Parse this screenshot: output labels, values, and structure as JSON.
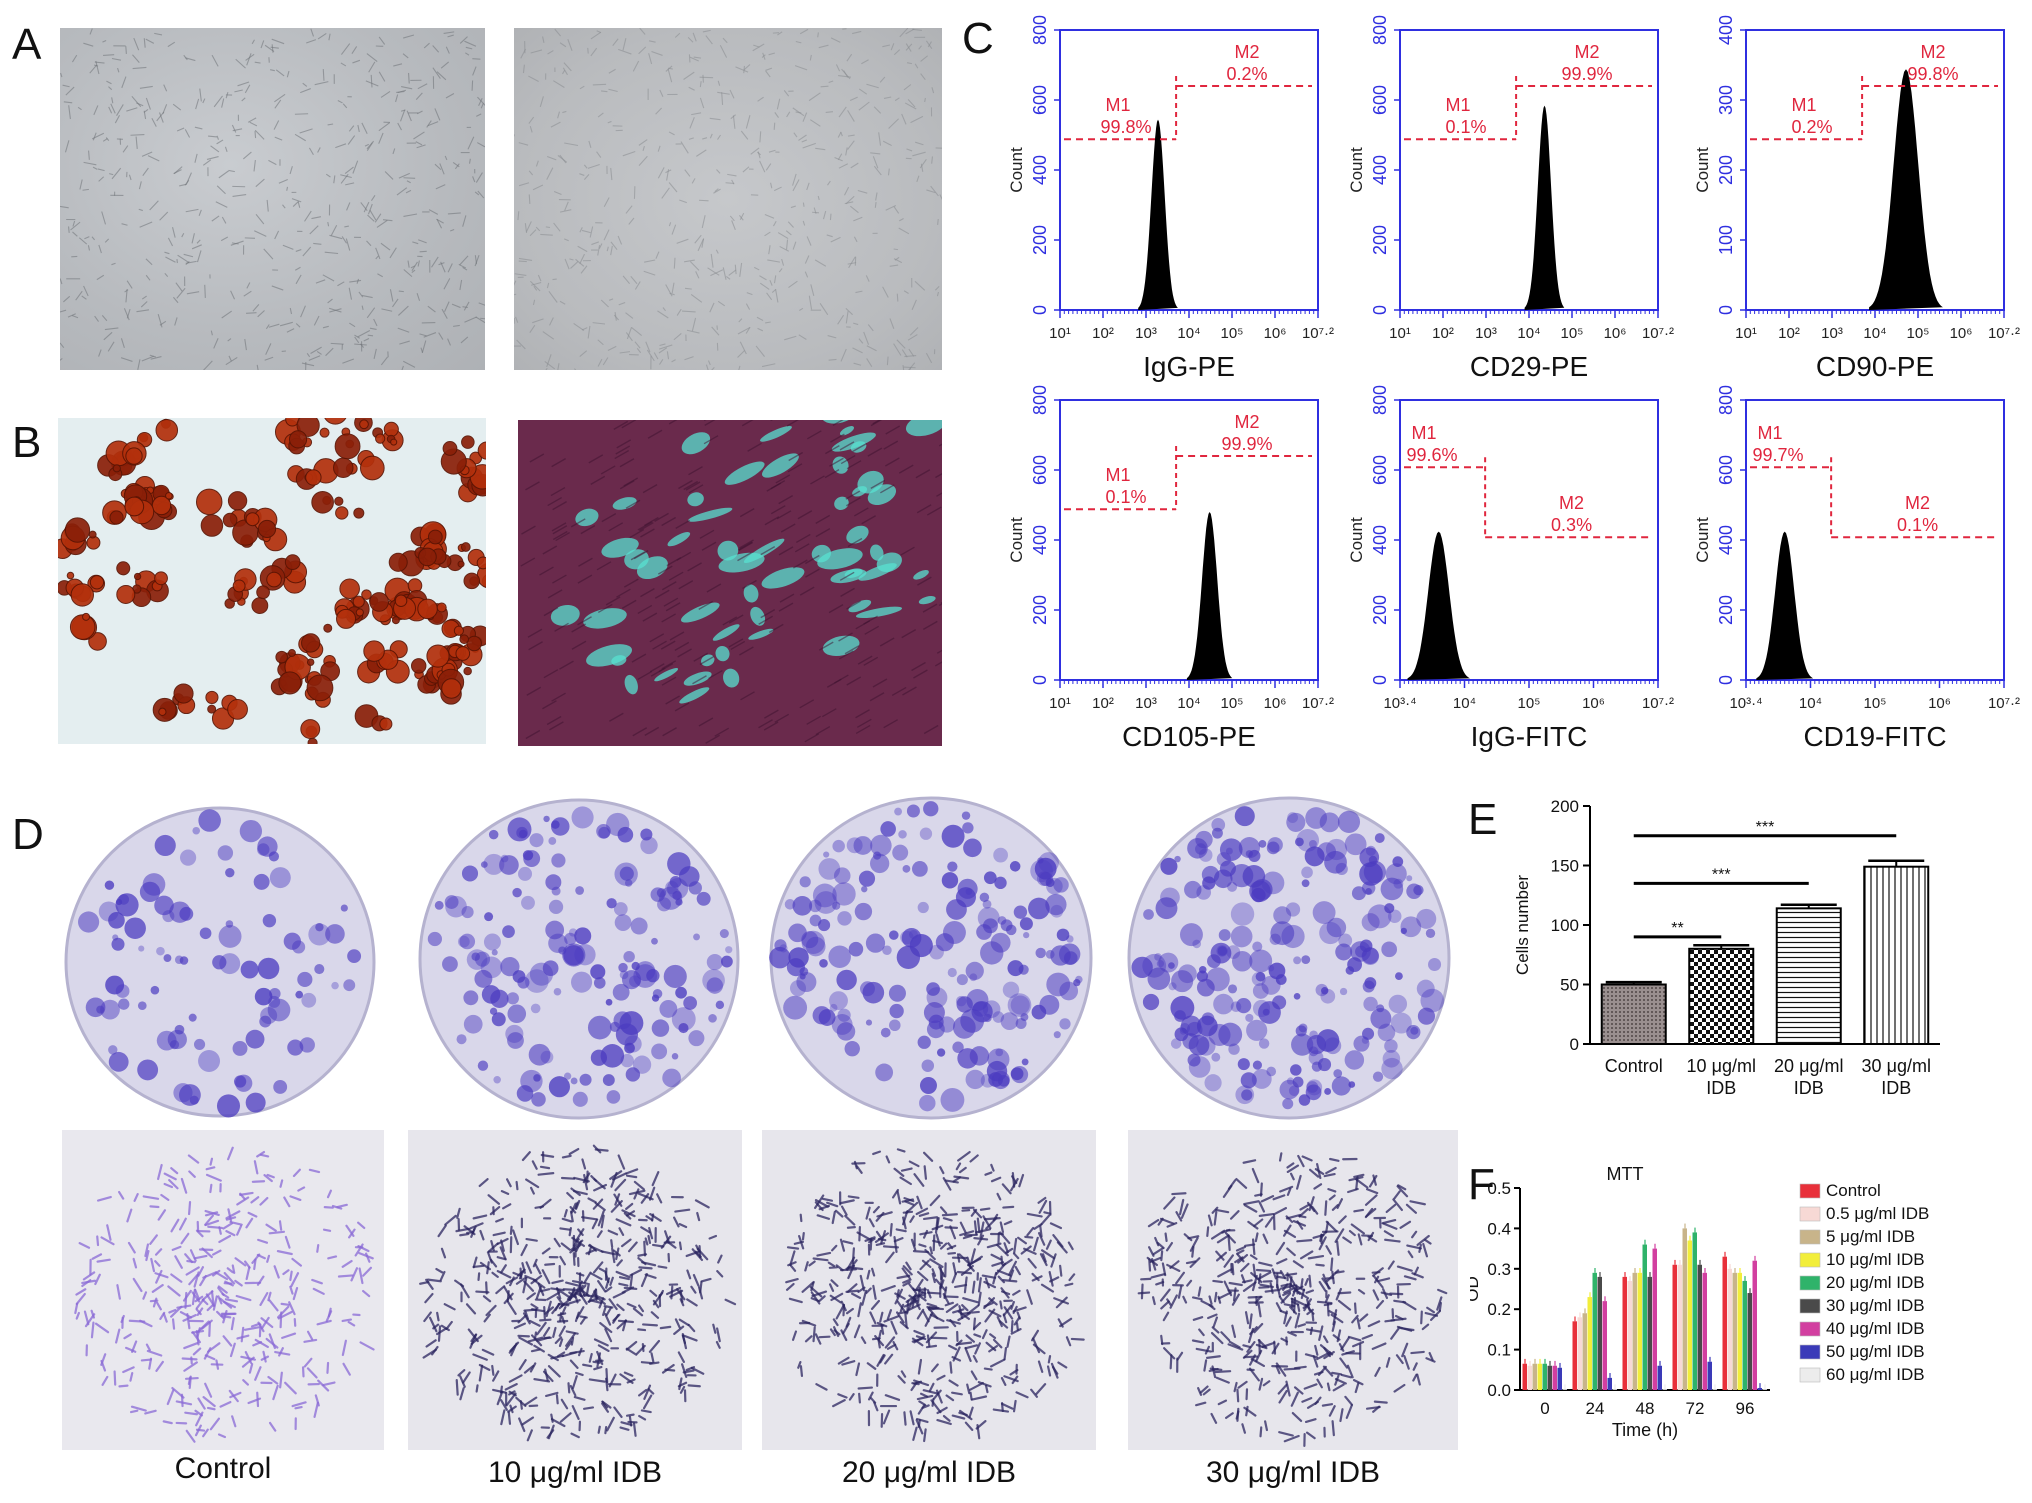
{
  "panels": {
    "A": "A",
    "B": "B",
    "C": "C",
    "D": "D",
    "E": "E",
    "F": "F"
  },
  "colors": {
    "axis_blue": "#2f2fe0",
    "gate_red": "#e0263e",
    "crystal_violet": "#4b3bc0",
    "oil_red": "#b3300c",
    "teal": "#58e0d0"
  },
  "flow": [
    {
      "marker": "IgG-PE",
      "ymax_label": "800",
      "yticks": [
        "0",
        "200",
        "400",
        "600",
        "800"
      ],
      "ylabel": "Count",
      "xticks": [
        "10¹",
        "10²",
        "10³",
        "10⁴",
        "10⁵",
        "10⁶",
        "10⁷·²"
      ],
      "m1": "M1",
      "m1_pct": "99.8%",
      "m2": "M2",
      "m2_pct": "0.2%",
      "peak_pos": 0.38,
      "peak_height": 0.68,
      "peak_width": 0.035
    },
    {
      "marker": "CD29-PE",
      "ymax_label": "800",
      "yticks": [
        "0",
        "200",
        "400",
        "600",
        "800"
      ],
      "ylabel": "Count",
      "xticks": [
        "10¹",
        "10²",
        "10³",
        "10⁴",
        "10⁵",
        "10⁶",
        "10⁷·²"
      ],
      "m1": "M1",
      "m1_pct": "0.1%",
      "m2": "M2",
      "m2_pct": "99.9%",
      "peak_pos": 0.56,
      "peak_height": 0.73,
      "peak_width": 0.035
    },
    {
      "marker": "CD90-PE",
      "ymax_label": "400",
      "yticks": [
        "0",
        "100",
        "200",
        "300",
        "400"
      ],
      "ylabel": "Count",
      "xticks": [
        "10¹",
        "10²",
        "10³",
        "10⁴",
        "10⁵",
        "10⁶",
        "10⁷·²"
      ],
      "m1": "M1",
      "m1_pct": "0.2%",
      "m2": "M2",
      "m2_pct": "99.8%",
      "peak_pos": 0.62,
      "peak_height": 0.86,
      "peak_width": 0.065
    },
    {
      "marker": "CD105-PE",
      "ymax_label": "800",
      "yticks": [
        "0",
        "200",
        "400",
        "600",
        "800"
      ],
      "ylabel": "Count",
      "xticks": [
        "10¹",
        "10²",
        "10³",
        "10⁴",
        "10⁵",
        "10⁶",
        "10⁷·²"
      ],
      "m1": "M1",
      "m1_pct": "0.1%",
      "m2": "M2",
      "m2_pct": "99.9%",
      "peak_pos": 0.58,
      "peak_height": 0.6,
      "peak_width": 0.04
    },
    {
      "marker": "IgG-FITC",
      "ymax_label": "800",
      "yticks": [
        "0",
        "200",
        "400",
        "600",
        "800"
      ],
      "ylabel": "Count",
      "xticks": [
        "10³·⁴",
        "10⁴",
        "10⁵",
        "10⁶",
        "10⁷·²"
      ],
      "m1": "M1",
      "m1_pct": "99.6%",
      "m2": "M2",
      "m2_pct": "0.3%",
      "peak_pos": 0.15,
      "peak_height": 0.53,
      "peak_width": 0.055
    },
    {
      "marker": "CD19-FITC",
      "ymax_label": "800",
      "yticks": [
        "0",
        "200",
        "400",
        "600",
        "800"
      ],
      "ylabel": "Count",
      "xticks": [
        "10³·⁴",
        "10⁴",
        "10⁵",
        "10⁶",
        "10⁷·²"
      ],
      "m1": "M1",
      "m1_pct": "99.7%",
      "m2": "M2",
      "m2_pct": "0.1%",
      "peak_pos": 0.15,
      "peak_height": 0.53,
      "peak_width": 0.05
    }
  ],
  "d_captions": [
    "Control",
    "10 μg/ml IDB",
    "20 μg/ml IDB",
    "30 μg/ml IDB"
  ],
  "chart_data": [
    {
      "type": "bar",
      "panel": "E",
      "categories": [
        "Control",
        "10 μg/ml\nIDB",
        "20 μg/ml\nIDB",
        "30 μg/ml\nIDB"
      ],
      "values": [
        50,
        80,
        114,
        149
      ],
      "errors": [
        2,
        3,
        3,
        5
      ],
      "ylabel": "Cells number",
      "ylim": [
        0,
        200
      ],
      "yticks": [
        0,
        50,
        100,
        150,
        200
      ],
      "significance": [
        {
          "from": 0,
          "to": 1,
          "label": "**"
        },
        {
          "from": 0,
          "to": 2,
          "label": "***"
        },
        {
          "from": 0,
          "to": 3,
          "label": "***"
        }
      ]
    },
    {
      "type": "bar",
      "panel": "F",
      "title": "MTT",
      "xlabel": "Time (h)",
      "ylabel": "OD",
      "categories": [
        "0",
        "24",
        "48",
        "72",
        "96"
      ],
      "ylim": [
        0,
        0.5
      ],
      "yticks": [
        "0.0",
        "0.1",
        "0.2",
        "0.3",
        "0.4",
        "0.5"
      ],
      "legend_position": "right",
      "series": [
        {
          "name": "Control",
          "color": "#e8303a",
          "values": [
            0.065,
            0.17,
            0.28,
            0.31,
            0.33
          ]
        },
        {
          "name": "0.5 μg/ml IDB",
          "color": "#f7d9d5",
          "values": [
            0.06,
            0.18,
            0.27,
            0.31,
            0.3
          ]
        },
        {
          "name": "5 μg/ml IDB",
          "color": "#c8b48a",
          "values": [
            0.065,
            0.19,
            0.29,
            0.4,
            0.29
          ]
        },
        {
          "name": "10 μg/ml IDB",
          "color": "#f2ee3a",
          "values": [
            0.065,
            0.23,
            0.29,
            0.37,
            0.29
          ]
        },
        {
          "name": "20 μg/ml IDB",
          "color": "#2fb36a",
          "values": [
            0.065,
            0.29,
            0.36,
            0.39,
            0.27
          ]
        },
        {
          "name": "30 μg/ml IDB",
          "color": "#4a4a4a",
          "values": [
            0.06,
            0.28,
            0.28,
            0.31,
            0.24
          ]
        },
        {
          "name": "40 μg/ml IDB",
          "color": "#d23fa0",
          "values": [
            0.06,
            0.22,
            0.35,
            0.29,
            0.32
          ]
        },
        {
          "name": "50 μg/ml IDB",
          "color": "#3a3ab8",
          "values": [
            0.055,
            0.03,
            0.06,
            0.07,
            0.005
          ]
        },
        {
          "name": "60 μg/ml IDB",
          "color": "#ececec",
          "values": [
            0.002,
            0.002,
            0.002,
            0.002,
            0.002
          ]
        }
      ]
    }
  ]
}
